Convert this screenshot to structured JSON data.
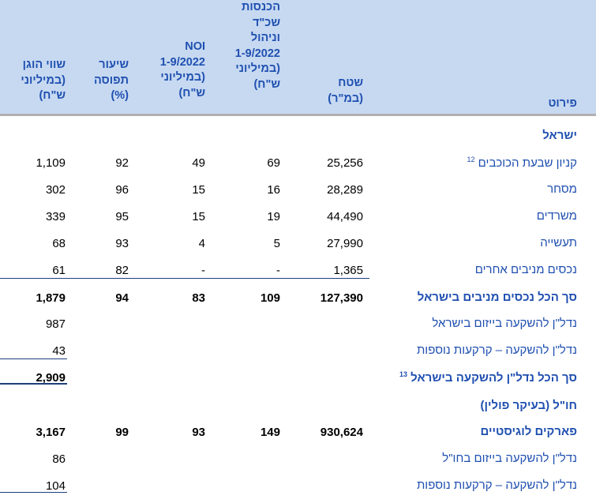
{
  "headers": {
    "col_value": "שווי הוגן\n(במיליוני\nש\"ח)",
    "col_occupancy": "שיעור\nתפוסה\n(%)",
    "col_noi": "NOI\n1-9/2022\n(במיליוני\nש\"ח)",
    "col_income": "הכנסות\nשכ\"ד\nוניהול\n1-9/2022\n(במיליוני\nש\"ח)",
    "col_area": "שטח\n(במ\"ר)",
    "col_breakdown": "פירוט"
  },
  "rows": [
    {
      "label": "ישראל",
      "section": true
    },
    {
      "label": "קניון שבעת הכוכבים",
      "sup": "12",
      "area": "25,256",
      "income": "69",
      "noi": "49",
      "occupancy": "92",
      "value": "1,109"
    },
    {
      "label": "מסחר",
      "area": "28,289",
      "income": "16",
      "noi": "15",
      "occupancy": "96",
      "value": "302"
    },
    {
      "label": "משרדים",
      "area": "44,490",
      "income": "19",
      "noi": "15",
      "occupancy": "95",
      "value": "339"
    },
    {
      "label": "תעשייה",
      "area": "27,990",
      "income": "5",
      "noi": "4",
      "occupancy": "93",
      "value": "68"
    },
    {
      "label": "נכסים מניבים אחרים",
      "area": "1,365",
      "income": "-",
      "noi": "-",
      "occupancy": "82",
      "value": "61"
    },
    {
      "label": "סך הכל נכסים מניבים בישראל",
      "bold": true,
      "area": "127,390",
      "income": "109",
      "noi": "83",
      "occupancy": "94",
      "value": "1,879"
    },
    {
      "label": "נדל\"ן להשקעה בייזום בישראל",
      "value": "987"
    },
    {
      "label": "נדל\"ן להשקעה – קרקעות נוספות",
      "value": "43"
    },
    {
      "label": "סך הכל נדל\"ן להשקעה בישראל",
      "sup": "13",
      "bold": true,
      "value": "2,909"
    },
    {
      "label": "חו\"ל (בעיקר פולין)",
      "section": true
    },
    {
      "label": "פארקים לוגיסטיים",
      "bold": true,
      "area": "930,624",
      "income": "149",
      "noi": "93",
      "occupancy": "99",
      "value": "3,167"
    },
    {
      "label": "נדל\"ן להשקעה בייזום בחו\"ל",
      "value": "86"
    },
    {
      "label": "נדל\"ן להשקעה – קרקעות נוספות",
      "value": "104"
    }
  ]
}
